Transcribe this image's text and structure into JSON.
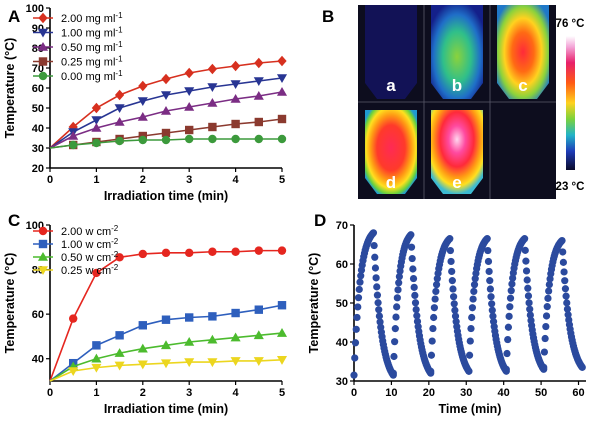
{
  "chart_data": [
    {
      "panel": "A",
      "type": "line",
      "xlabel": "Irradiation time (min)",
      "ylabel": "Temperature (°C)",
      "xlim": [
        0,
        5
      ],
      "ylim": [
        20,
        100
      ],
      "xticks": [
        0,
        1,
        2,
        3,
        4,
        5
      ],
      "yticks": [
        20,
        30,
        40,
        50,
        60,
        70,
        80,
        90,
        100
      ],
      "legend_position": "top-left",
      "x": [
        0,
        0.5,
        1,
        1.5,
        2,
        2.5,
        3,
        3.5,
        4,
        4.5,
        5
      ],
      "series": [
        {
          "name": "2.00 mg ml",
          "sup": "-1",
          "color": "#d7301f",
          "marker": "diamond",
          "values": [
            30,
            40.5,
            50,
            56.5,
            61,
            64.5,
            67.5,
            69.5,
            71,
            72.5,
            73.5
          ]
        },
        {
          "name": "1.00 mg ml",
          "sup": "-1",
          "color": "#283593",
          "marker": "triangle-down",
          "values": [
            30,
            38,
            44,
            50,
            53.5,
            56.5,
            58.5,
            60.5,
            62,
            63.5,
            65
          ]
        },
        {
          "name": "0.50 mg ml",
          "sup": "-1",
          "color": "#7b2d84",
          "marker": "triangle-up",
          "values": [
            30,
            36,
            40,
            43,
            45.5,
            48.5,
            50.5,
            52.5,
            54.5,
            56,
            58
          ]
        },
        {
          "name": "0.25 mg ml",
          "sup": "-1",
          "color": "#8b3a2f",
          "marker": "square",
          "values": [
            30,
            31.5,
            33,
            34.5,
            36,
            37.5,
            39,
            40.5,
            42,
            43,
            44.5
          ]
        },
        {
          "name": "0.00 mg ml",
          "sup": "-1",
          "color": "#3c9a3c",
          "marker": "circle",
          "values": [
            30,
            31.5,
            32.5,
            33.5,
            34,
            34,
            34.5,
            34.5,
            34.5,
            34.5,
            34.5
          ]
        }
      ]
    },
    {
      "panel": "C",
      "type": "line",
      "xlabel": "Irradiation time (min)",
      "ylabel": "Temperature (°C)",
      "xlim": [
        0,
        5
      ],
      "ylim": [
        30,
        100
      ],
      "xticks": [
        0,
        1,
        2,
        3,
        4,
        5
      ],
      "yticks": [
        40,
        60,
        80,
        100
      ],
      "legend_position": "top-left",
      "x": [
        0,
        0.5,
        1,
        1.5,
        2,
        2.5,
        3,
        3.5,
        4,
        4.5,
        5
      ],
      "series": [
        {
          "name": "2.00 w cm",
          "sup": "-2",
          "color": "#e5261f",
          "marker": "circle",
          "values": [
            30,
            58,
            78.5,
            85.5,
            87,
            87.5,
            87.5,
            88,
            88,
            88.5,
            88.5
          ]
        },
        {
          "name": "1.00 w cm",
          "sup": "-2",
          "color": "#2e5fbd",
          "marker": "square",
          "values": [
            30,
            38,
            46,
            50.5,
            55,
            57.5,
            58.5,
            59,
            60.5,
            62,
            64
          ]
        },
        {
          "name": "0.50 w cm",
          "sup": "-2",
          "color": "#4cbb2e",
          "marker": "triangle-up",
          "values": [
            30,
            36.5,
            40,
            42.5,
            44.5,
            46,
            47.5,
            48.5,
            49.5,
            50.5,
            51.5
          ]
        },
        {
          "name": "0.25 w cm",
          "sup": "-2",
          "color": "#ecd61f",
          "marker": "triangle-down",
          "values": [
            30,
            34.5,
            36,
            37,
            37.5,
            38,
            38.5,
            38.5,
            39,
            39,
            39.5
          ]
        }
      ]
    },
    {
      "panel": "D",
      "type": "scatter",
      "xlabel": "Time (min)",
      "ylabel": "Temperature (°C)",
      "xlim": [
        0,
        62
      ],
      "ylim": [
        30,
        70
      ],
      "xticks": [
        0,
        10,
        20,
        30,
        40,
        50,
        60
      ],
      "yticks": [
        30,
        40,
        50,
        60,
        70
      ],
      "color": "#2b4a9e",
      "cycles": [
        {
          "start": 0,
          "peak_time": 5.2,
          "end": 10.5,
          "min": 31.5,
          "max": 68
        },
        {
          "start": 10.5,
          "peak_time": 15.2,
          "end": 20.5,
          "min": 32,
          "max": 67.5
        },
        {
          "start": 20.5,
          "peak_time": 25.6,
          "end": 30.7,
          "min": 32.5,
          "max": 66.5
        },
        {
          "start": 30.7,
          "peak_time": 35.6,
          "end": 40.7,
          "min": 32.5,
          "max": 66.5
        },
        {
          "start": 40.7,
          "peak_time": 45.6,
          "end": 50.7,
          "min": 33,
          "max": 66.5
        },
        {
          "start": 50.7,
          "peak_time": 55.6,
          "end": 61,
          "min": 33.5,
          "max": 66
        }
      ]
    }
  ],
  "panel_b": {
    "label": "B",
    "wells": [
      "a",
      "b",
      "c",
      "d",
      "e"
    ],
    "scale_max": "76 °C",
    "scale_min": "23 °C"
  },
  "panel_labels": {
    "a": "A",
    "c": "C",
    "d": "D"
  }
}
